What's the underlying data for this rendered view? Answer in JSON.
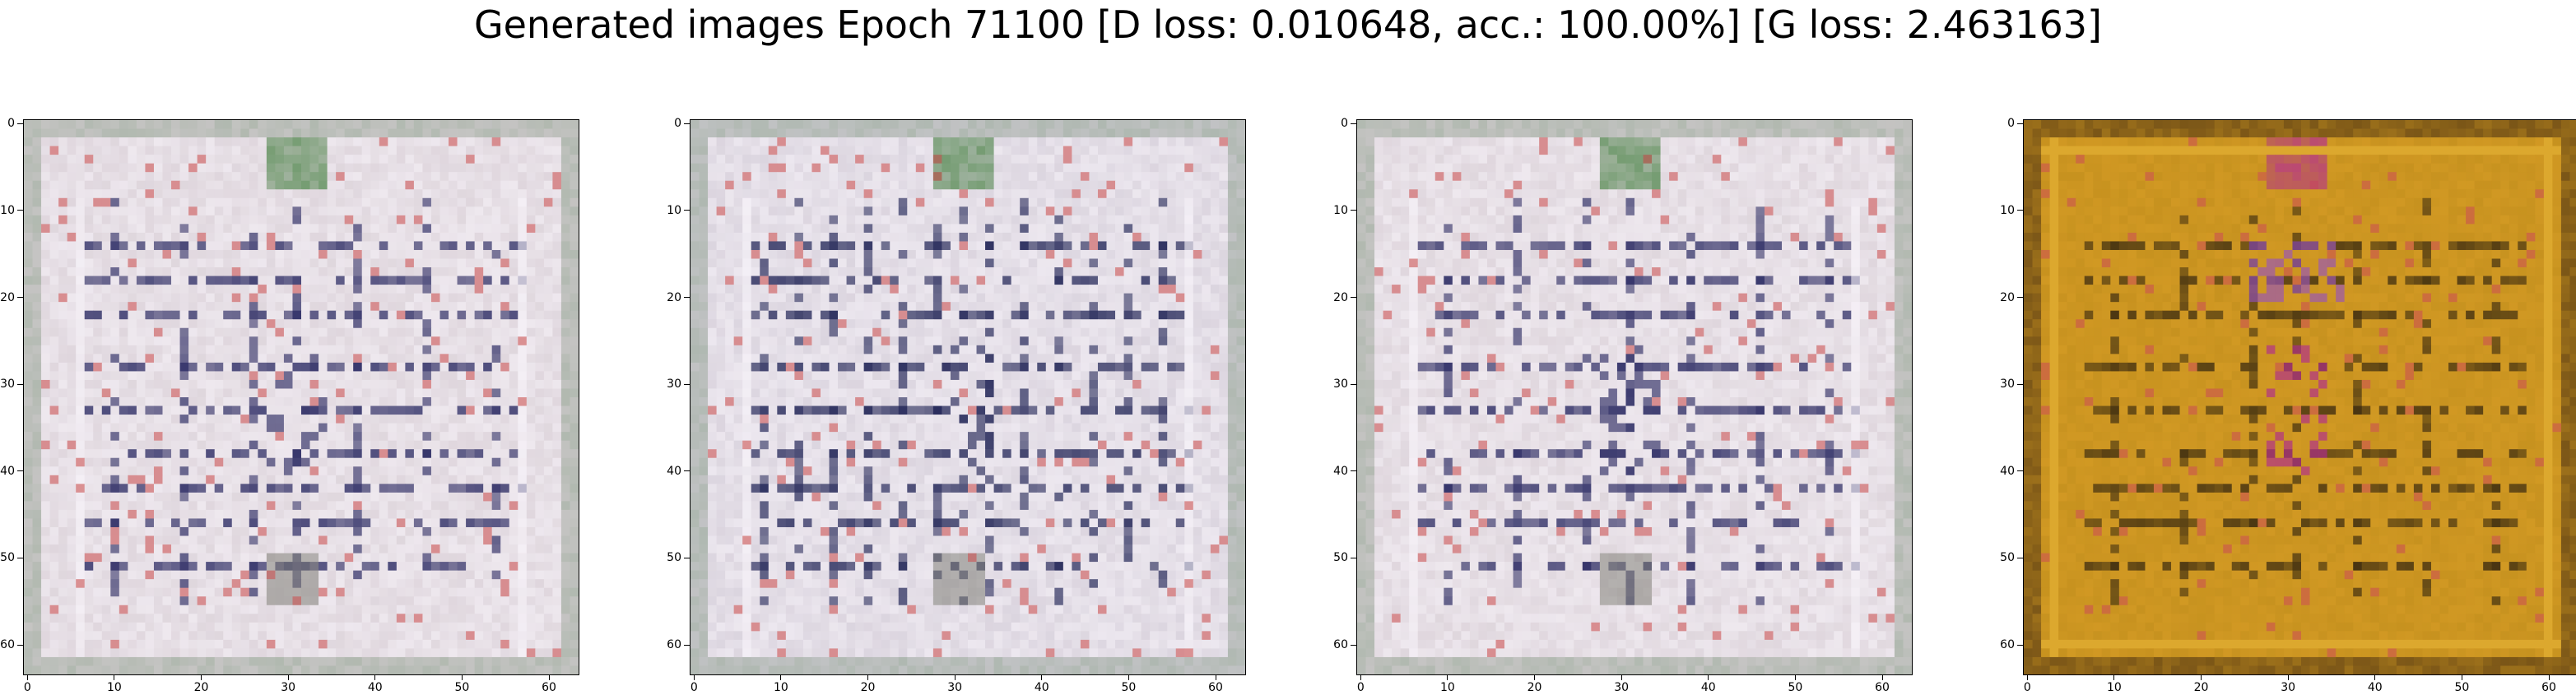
{
  "figure": {
    "title": "Generated images Epoch 71100 [D loss: 0.010648, acc.: 100.00%] [G loss: 2.463163]"
  },
  "axes": {
    "x_ticks": [
      "0",
      "10",
      "20",
      "30",
      "40",
      "50",
      "60"
    ],
    "y_ticks": [
      "0",
      "10",
      "20",
      "30",
      "40",
      "50",
      "60"
    ],
    "range": [
      0,
      63
    ]
  },
  "panels": [
    {
      "palette": "lavender-grey",
      "base_color": "#d9cfd6",
      "line_color": "#23235e",
      "accent_color": "#3f7a3a"
    },
    {
      "palette": "lavender-grey",
      "base_color": "#d4cdd8",
      "line_color": "#1b1f52",
      "accent_color": "#3f7a3a"
    },
    {
      "palette": "lavender-grey",
      "base_color": "#d9cfd6",
      "line_color": "#23235e",
      "accent_color": "#3f7a3a"
    },
    {
      "palette": "amber",
      "base_color": "#c7921f",
      "line_color": "#3a2a10",
      "accent_color": "#b0239a"
    }
  ]
}
